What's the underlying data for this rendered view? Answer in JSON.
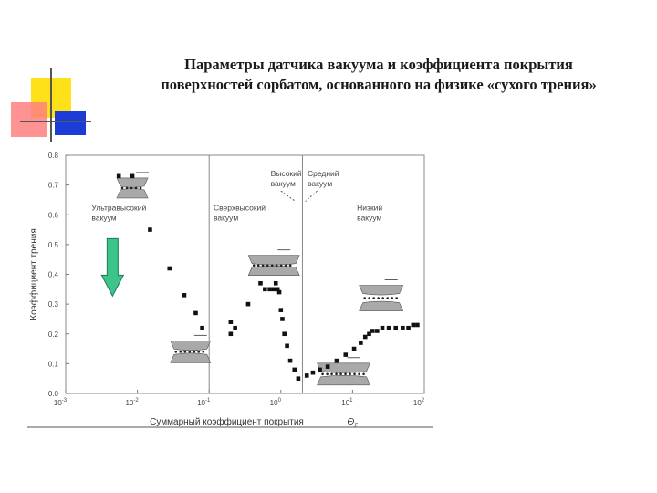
{
  "title_lines": [
    "Параметры датчика вакуума и коэффициента покрытия",
    "поверхностей сорбатом, основанного на физике «сухого трения»"
  ],
  "colors": {
    "yellow": "#ffe11a",
    "red_pink": "#ff8080",
    "blue": "#1c3cd8",
    "arrow_green": "#3dc48a",
    "marker": "#111111",
    "plot_line": "#888888"
  },
  "icons": [
    "green-down-arrow-icon",
    "friction-contact-icon"
  ],
  "chart_data": {
    "type": "scatter",
    "title": "",
    "xlabel": "Суммарный коэффициент покрытия",
    "xlabel_symbol": "Θ",
    "xlabel_symbol_sub": "Σ",
    "ylabel": "Коэффициент трения",
    "xscale": "log",
    "xlim": [
      0.001,
      100
    ],
    "ylim": [
      0,
      0.8
    ],
    "x_ticks": [
      {
        "value": 0.001,
        "base": "10",
        "exp": "-3"
      },
      {
        "value": 0.01,
        "base": "10",
        "exp": "-2"
      },
      {
        "value": 0.1,
        "base": "10",
        "exp": "-1"
      },
      {
        "value": 1,
        "base": "10",
        "exp": "0"
      },
      {
        "value": 10,
        "base": "10",
        "exp": "1"
      },
      {
        "value": 100,
        "base": "10",
        "exp": "2"
      }
    ],
    "y_ticks": [
      "0.0",
      "0.1",
      "0.2",
      "0.3",
      "0.4",
      "0.5",
      "0.6",
      "0.7",
      "0.8"
    ],
    "y_tick_values": [
      0,
      0.1,
      0.2,
      0.3,
      0.4,
      0.5,
      0.6,
      0.7,
      0.8
    ],
    "boundaries_x": [
      0.1,
      2
    ],
    "regions": [
      {
        "lines": [
          "Ультравысокий",
          "вакуум"
        ],
        "at_x": 0.0023,
        "at_y": 0.615
      },
      {
        "lines": [
          "Сверхвысокий",
          "вакуум"
        ],
        "at_x": 0.115,
        "at_y": 0.615
      },
      {
        "lines": [
          "Высокий",
          "вакуум"
        ],
        "at_x": 0.72,
        "at_y": 0.73
      },
      {
        "lines": [
          "Средний",
          "вакуум"
        ],
        "at_x": 2.35,
        "at_y": 0.73
      },
      {
        "lines": [
          "Низкий",
          "вакуум"
        ],
        "at_x": 11.5,
        "at_y": 0.615
      }
    ],
    "series": [
      {
        "x": [
          0.0055,
          0.0085,
          0.015,
          0.028,
          0.045,
          0.065,
          0.08,
          0.2,
          0.2,
          0.23,
          0.35,
          0.52,
          0.6,
          0.7,
          0.8,
          0.85,
          0.9,
          0.95,
          1.0,
          1.05,
          1.12,
          1.22,
          1.35,
          1.55,
          1.75,
          2.3,
          2.8,
          3.5,
          4.5,
          6.0,
          8.0,
          10.5,
          13.0,
          15.0,
          17.0,
          19.0,
          22.0,
          26.0,
          32.0,
          40.0,
          50.0,
          60.0,
          70.0,
          80.0
        ],
        "y": [
          0.73,
          0.73,
          0.55,
          0.42,
          0.33,
          0.27,
          0.22,
          0.2,
          0.24,
          0.22,
          0.3,
          0.37,
          0.35,
          0.35,
          0.35,
          0.37,
          0.35,
          0.34,
          0.28,
          0.25,
          0.2,
          0.16,
          0.11,
          0.08,
          0.05,
          0.06,
          0.07,
          0.08,
          0.09,
          0.11,
          0.13,
          0.15,
          0.17,
          0.19,
          0.2,
          0.21,
          0.21,
          0.22,
          0.22,
          0.22,
          0.22,
          0.22,
          0.23,
          0.23
        ]
      }
    ]
  }
}
